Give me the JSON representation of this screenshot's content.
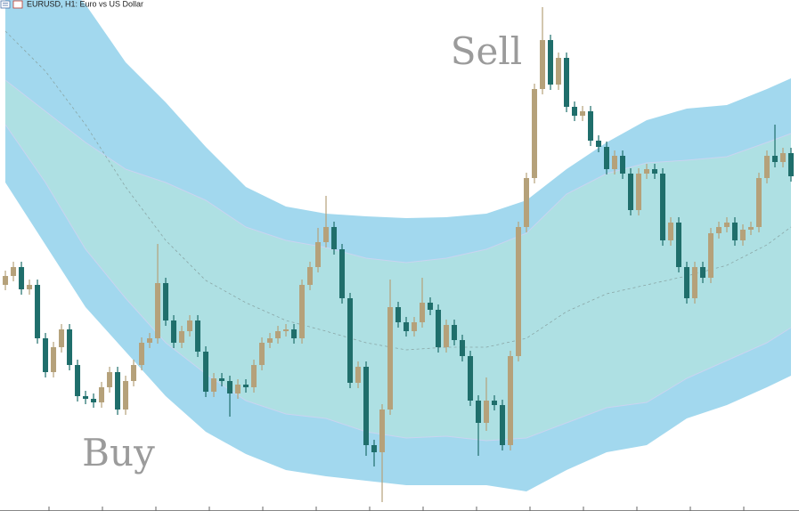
{
  "chart_data": {
    "type": "candlestick",
    "title": "EURUSD, H1:  Euro vs US Dollar",
    "annotations": [
      "Sell",
      "Buy"
    ],
    "xlim": [
      -0.67,
      99
    ],
    "ylim": [
      0,
      574
    ],
    "up_color": "#b5a17a",
    "down_color": "#1f6e6b",
    "open": [
      254,
      264,
      274,
      249,
      254,
      194,
      156,
      184,
      204,
      164,
      129,
      126,
      122,
      139,
      156,
      114,
      146,
      164,
      189,
      194,
      256,
      214,
      189,
      202,
      214,
      179,
      134,
      149,
      146,
      132,
      142,
      139,
      164,
      189,
      194,
      202,
      204,
      194,
      254,
      274,
      302,
      319,
      294,
      239,
      144,
      162,
      74,
      66,
      114,
      229,
      212,
      202,
      212,
      234,
      226,
      184,
      209,
      192,
      174,
      124,
      99,
      124,
      119,
      74,
      174,
      319,
      374,
      474,
      529,
      479,
      509,
      454,
      444,
      449,
      416,
      409,
      384,
      399,
      379,
      338,
      379,
      384,
      379,
      304,
      324,
      274,
      239,
      274,
      262,
      312,
      319,
      324,
      304,
      316,
      319,
      374,
      399,
      392,
      402
    ],
    "high": [
      270,
      280,
      280,
      260,
      260,
      200,
      190,
      210,
      210,
      170,
      135,
      132,
      145,
      162,
      162,
      152,
      170,
      195,
      200,
      300,
      262,
      220,
      208,
      220,
      220,
      185,
      155,
      155,
      152,
      148,
      148,
      170,
      195,
      200,
      208,
      210,
      210,
      260,
      280,
      318,
      354,
      325,
      300,
      245,
      168,
      168,
      80,
      120,
      260,
      235,
      218,
      218,
      262,
      240,
      232,
      215,
      215,
      198,
      180,
      130,
      150,
      130,
      125,
      180,
      325,
      380,
      480,
      566,
      535,
      515,
      515,
      460,
      455,
      455,
      422,
      415,
      405,
      405,
      385,
      385,
      390,
      390,
      385,
      330,
      330,
      280,
      280,
      280,
      318,
      325,
      330,
      330,
      322,
      325,
      380,
      405,
      434,
      408,
      408
    ],
    "low": [
      248,
      258,
      243,
      243,
      188,
      150,
      150,
      178,
      158,
      123,
      120,
      116,
      116,
      133,
      108,
      108,
      140,
      158,
      183,
      188,
      208,
      183,
      183,
      196,
      173,
      128,
      128,
      140,
      106,
      126,
      133,
      133,
      158,
      183,
      188,
      196,
      188,
      188,
      248,
      268,
      296,
      288,
      233,
      138,
      138,
      62,
      50,
      10,
      108,
      206,
      196,
      196,
      206,
      220,
      178,
      178,
      186,
      168,
      118,
      62,
      90,
      113,
      68,
      68,
      168,
      313,
      368,
      468,
      473,
      473,
      448,
      438,
      438,
      410,
      403,
      378,
      378,
      373,
      332,
      332,
      373,
      373,
      298,
      298,
      268,
      233,
      233,
      256,
      256,
      306,
      313,
      298,
      298,
      310,
      313,
      368,
      386,
      386,
      370
    ],
    "close": [
      264,
      274,
      249,
      254,
      194,
      156,
      184,
      204,
      164,
      129,
      126,
      122,
      139,
      156,
      114,
      146,
      164,
      189,
      194,
      256,
      214,
      189,
      202,
      214,
      179,
      134,
      149,
      146,
      132,
      142,
      139,
      164,
      189,
      194,
      202,
      204,
      194,
      254,
      274,
      302,
      319,
      294,
      239,
      144,
      162,
      74,
      66,
      114,
      229,
      212,
      202,
      212,
      234,
      226,
      184,
      209,
      192,
      174,
      124,
      99,
      124,
      119,
      74,
      174,
      319,
      374,
      474,
      529,
      479,
      509,
      454,
      444,
      449,
      416,
      409,
      384,
      399,
      379,
      338,
      379,
      384,
      379,
      304,
      324,
      274,
      239,
      274,
      262,
      312,
      319,
      324,
      304,
      316,
      319,
      374,
      399,
      392,
      402,
      376
    ],
    "bands": {
      "x": [
        0,
        5,
        10,
        15,
        20,
        25,
        30,
        35,
        40,
        45,
        50,
        55,
        60,
        65,
        70,
        75,
        80,
        85,
        90,
        95,
        98
      ],
      "outer_color": "#a2d8ee",
      "inner_color": "#aee0e3",
      "outer_upper": [
        654,
        614,
        569,
        504,
        459,
        409,
        364,
        342,
        334,
        331,
        329,
        330,
        334,
        349,
        384,
        414,
        439,
        452,
        456,
        474,
        486
      ],
      "inner_upper": [
        484,
        449,
        414,
        384,
        369,
        349,
        319,
        304,
        296,
        284,
        279,
        284,
        294,
        312,
        356,
        379,
        391,
        394,
        398,
        414,
        424
      ],
      "middle": [
        539,
        494,
        434,
        364,
        304,
        259,
        234,
        214,
        202,
        189,
        181,
        184,
        184,
        194,
        224,
        244,
        254,
        264,
        276,
        299,
        319
      ],
      "inner_lower": [
        434,
        369,
        294,
        239,
        189,
        154,
        124,
        109,
        104,
        89,
        82,
        84,
        79,
        82,
        99,
        116,
        122,
        149,
        169,
        189,
        206
      ],
      "outer_lower": [
        369,
        299,
        229,
        179,
        129,
        89,
        64,
        46,
        39,
        34,
        29,
        29,
        29,
        22,
        46,
        66,
        74,
        104,
        119,
        139,
        152
      ]
    }
  }
}
